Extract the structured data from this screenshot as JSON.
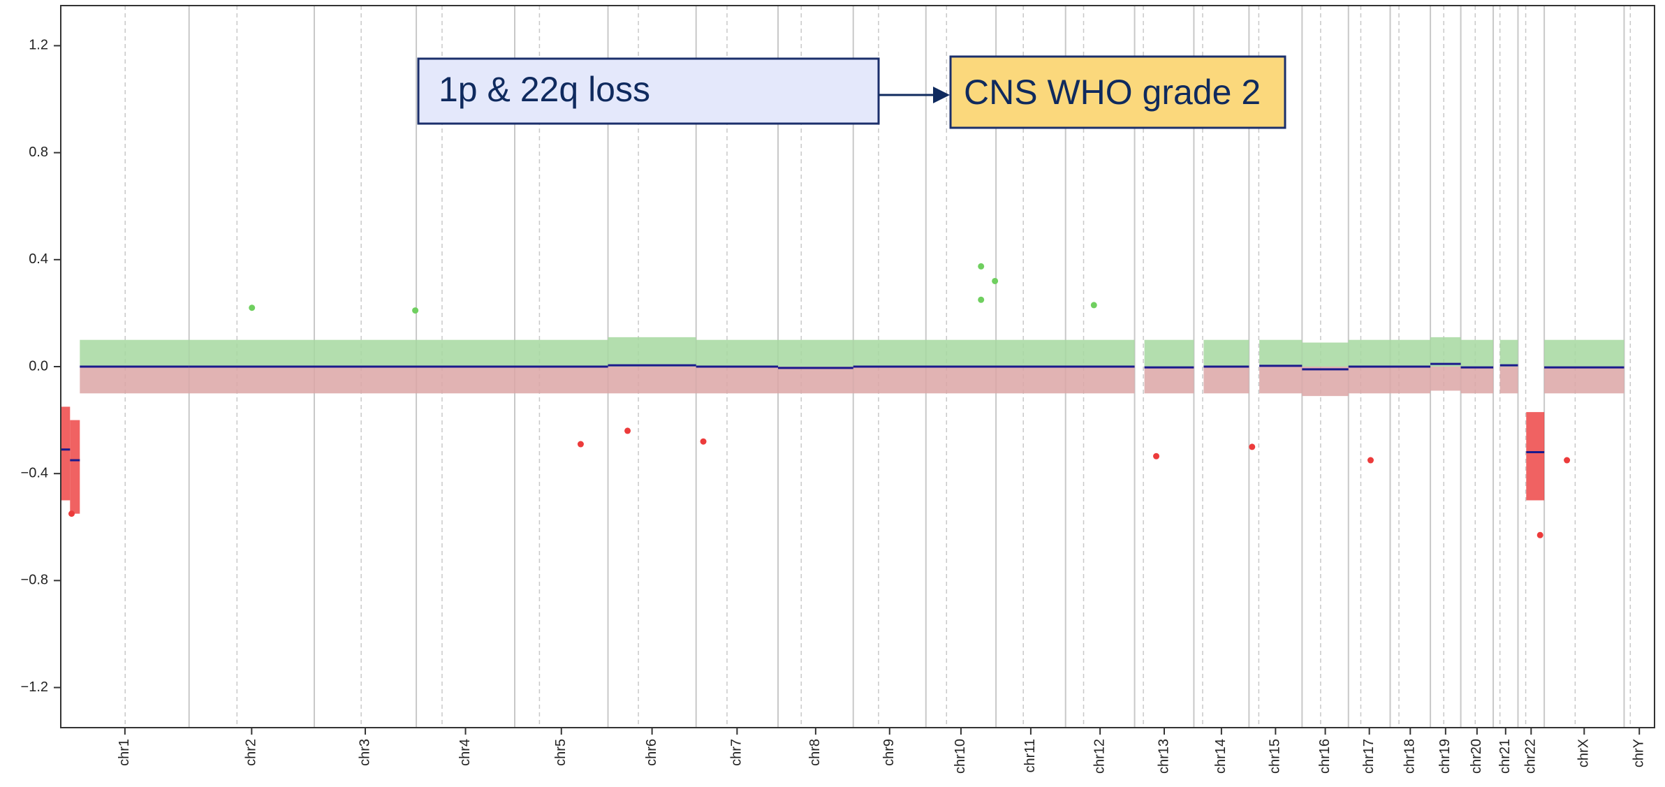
{
  "chart_data": {
    "type": "copy-number",
    "annotations": {
      "finding": "1p & 22q loss",
      "result": "CNS WHO grade 2"
    },
    "categories": [
      "chr1",
      "chr2",
      "chr3",
      "chr4",
      "chr5",
      "chr6",
      "chr7",
      "chr8",
      "chr9",
      "chr10",
      "chr11",
      "chr12",
      "chr13",
      "chr14",
      "chr15",
      "chr16",
      "chr17",
      "chr18",
      "chr19",
      "chr20",
      "chr21",
      "chr22",
      "chrX",
      "chrY"
    ],
    "chromosome_lengths": [
      249,
      243,
      198,
      191,
      181,
      171,
      159,
      146,
      141,
      136,
      135,
      134,
      115,
      107,
      103,
      90,
      81,
      78,
      59,
      63,
      48,
      51,
      155,
      59
    ],
    "centromeres": [
      125,
      93,
      91,
      50,
      48,
      59,
      60,
      45,
      49,
      40,
      53,
      35,
      17,
      17,
      19,
      36,
      24,
      17,
      26,
      28,
      13,
      15,
      60,
      12
    ],
    "xlim": [
      0,
      3093
    ],
    "ylim": [
      -1.35,
      1.35
    ],
    "yticks": [
      {
        "value": -1.2,
        "label": "−1.2"
      },
      {
        "value": -0.8,
        "label": "−0.8"
      },
      {
        "value": -0.4,
        "label": "−0.4"
      },
      {
        "value": 0,
        "label": "0.0"
      },
      0.4,
      0.8,
      1.2
    ],
    "segment_color": "#1a1a8c",
    "gain_color": "#a6d8a0",
    "neutral_loss_color": "#dca6a6",
    "loss_color": "#ec3b3b",
    "segments": [
      {
        "start": 0,
        "end": 18,
        "value": -0.31,
        "spread": [
          -0.5,
          -0.15
        ]
      },
      {
        "start": 18,
        "end": 37,
        "value": -0.35,
        "spread": [
          -0.55,
          -0.2
        ]
      },
      {
        "start": 37,
        "end": 249,
        "value": 0,
        "spread": [
          -0.1,
          0.1
        ]
      },
      {
        "start": 249,
        "end": 1062,
        "value": 0,
        "spread": [
          -0.1,
          0.1
        ]
      },
      {
        "start": 1062,
        "end": 1233,
        "value": 0.005,
        "spread": [
          -0.1,
          0.11
        ]
      },
      {
        "start": 1233,
        "end": 1392,
        "value": 0,
        "spread": [
          -0.1,
          0.1
        ]
      },
      {
        "start": 1392,
        "end": 1538,
        "value": -0.005,
        "spread": [
          -0.1,
          0.1
        ]
      },
      {
        "start": 1538,
        "end": 2084,
        "value": 0,
        "spread": [
          -0.1,
          0.1
        ]
      },
      {
        "start": 2103,
        "end": 2199,
        "value": -0.003,
        "spread": [
          -0.1,
          0.1
        ]
      },
      {
        "start": 2218,
        "end": 2306,
        "value": 0,
        "spread": [
          -0.1,
          0.1
        ]
      },
      {
        "start": 2326,
        "end": 2409,
        "value": 0.003,
        "spread": [
          -0.1,
          0.1
        ]
      },
      {
        "start": 2409,
        "end": 2499,
        "value": -0.01,
        "spread": [
          -0.11,
          0.09
        ]
      },
      {
        "start": 2499,
        "end": 2658,
        "value": 0,
        "spread": [
          -0.1,
          0.1
        ]
      },
      {
        "start": 2658,
        "end": 2717,
        "value": 0.01,
        "spread": [
          -0.09,
          0.11
        ]
      },
      {
        "start": 2717,
        "end": 2780,
        "value": -0.003,
        "spread": [
          -0.1,
          0.1
        ]
      },
      {
        "start": 2793,
        "end": 2828,
        "value": 0.005,
        "spread": [
          -0.1,
          0.1
        ]
      },
      {
        "start": 2844,
        "end": 2879,
        "value": -0.32,
        "spread": [
          -0.5,
          -0.17
        ]
      },
      {
        "start": 2879,
        "end": 3034,
        "value": -0.003,
        "spread": [
          -0.1,
          0.1
        ]
      }
    ],
    "points": {
      "x": [
        1786,
        1786,
        1813,
        1009,
        1247,
        1100,
        2126,
        2312,
        2542,
        2923,
        2871,
        21,
        371,
        688,
        2005
      ],
      "y": [
        0.375,
        0.25,
        0.32,
        -0.29,
        -0.28,
        -0.24,
        -0.335,
        -0.3,
        -0.35,
        -0.35,
        -0.63,
        -0.55,
        0.22,
        0.21,
        0.23
      ]
    }
  }
}
